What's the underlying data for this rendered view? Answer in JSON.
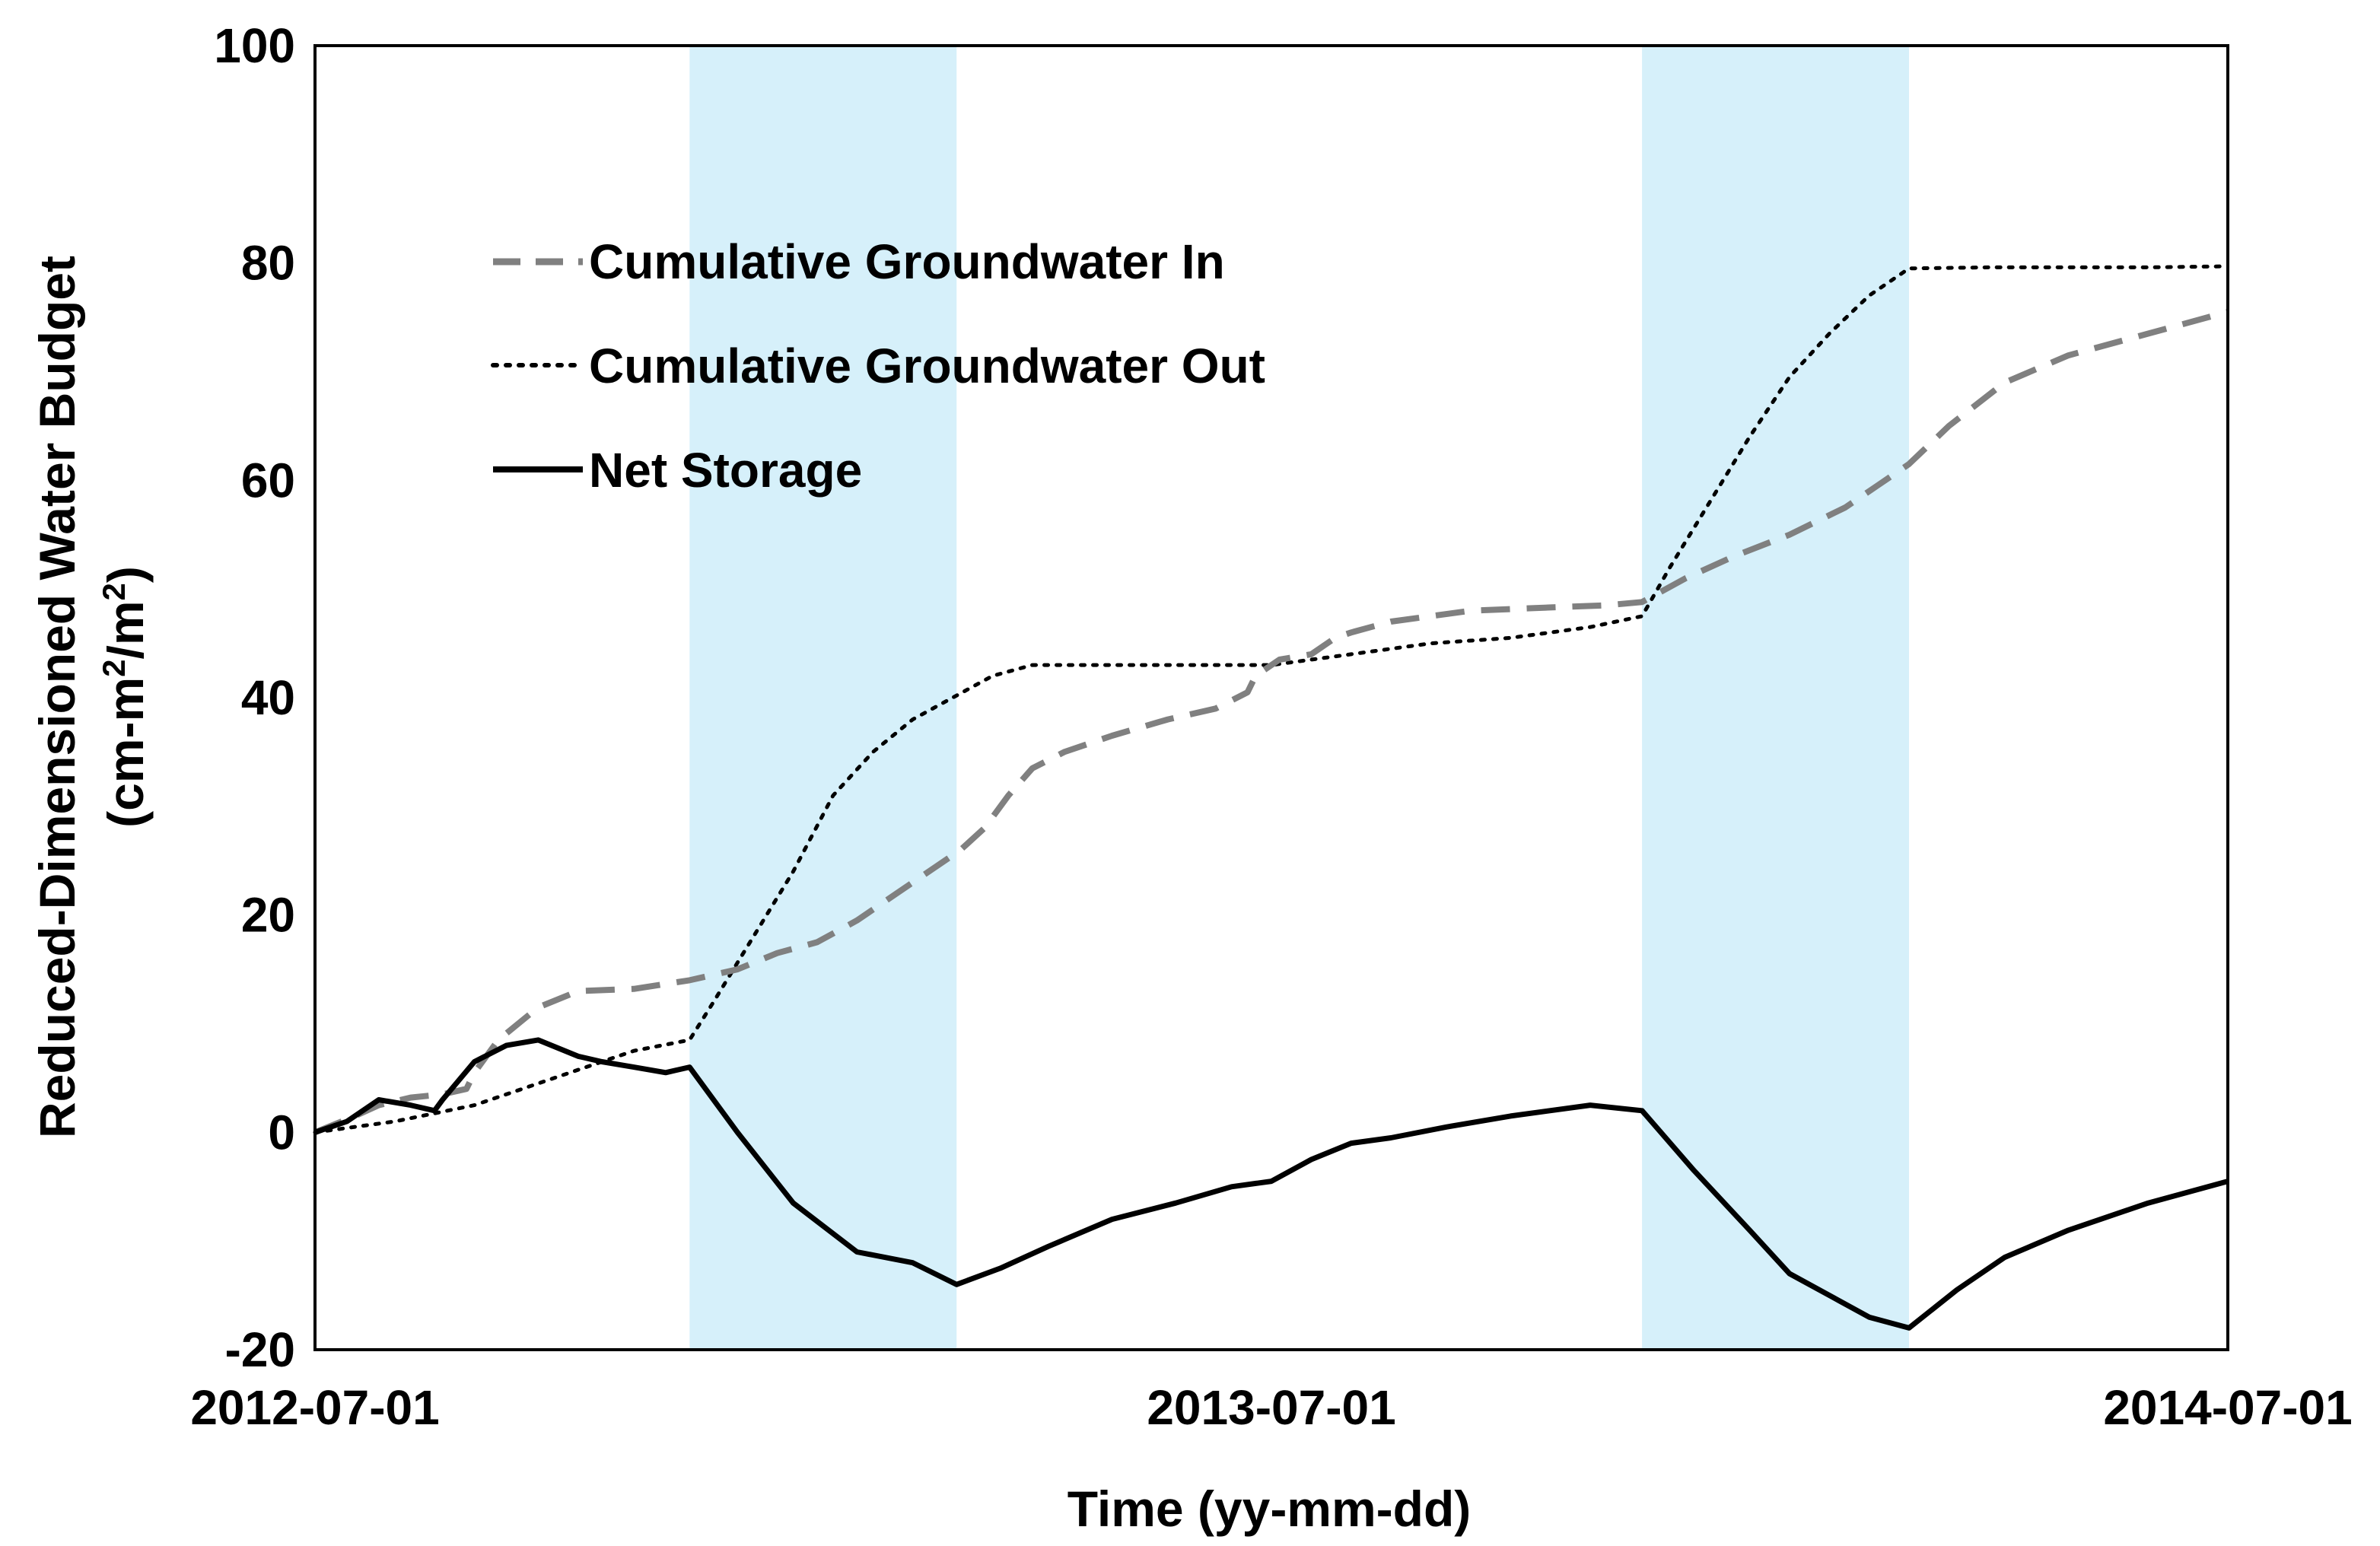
{
  "chart_data": {
    "type": "line",
    "title": "",
    "xlabel": "Time (yy-mm-dd)",
    "ylabel_line1": "Reduced-Dimensioned Water Budget",
    "ylabel_line2": "(cm-m",
    "ylabel_sup1": "2",
    "ylabel_mid": "/m",
    "ylabel_sup2": "2",
    "ylabel_end": ")",
    "x_unit": "months since 2012-07-01",
    "xlim": [
      0,
      24
    ],
    "ylim": [
      -20,
      100
    ],
    "y_ticks": [
      -20,
      0,
      20,
      40,
      60,
      80,
      100
    ],
    "y_tick_labels": [
      "-20",
      "0",
      "20",
      "40",
      "60",
      "80",
      "100"
    ],
    "x_ticks": [
      0,
      12,
      24
    ],
    "x_tick_labels": [
      "2012-07-01",
      "2013-07-01",
      "2014-07-01"
    ],
    "shaded_periods": [
      [
        4.7,
        8.05
      ],
      [
        16.65,
        20.0
      ]
    ],
    "shade_color": "#d6f0fa",
    "grid": false,
    "legend_position": "upper-left",
    "series": [
      {
        "name": "Cumulative Groundwater In",
        "style": "dashed",
        "color": "#808080",
        "x": [
          0,
          0.5,
          0.8,
          1.2,
          1.6,
          1.9,
          2.0,
          2.3,
          2.8,
          3.3,
          4.0,
          4.7,
          5.3,
          5.8,
          6.3,
          6.8,
          7.3,
          7.8,
          8.1,
          8.4,
          8.7,
          9.0,
          9.4,
          10.0,
          10.7,
          11.3,
          11.7,
          11.8,
          12.1,
          12.5,
          12.8,
          13.0,
          13.5,
          14.5,
          15.5,
          16.2,
          16.65,
          17.2,
          17.8,
          18.5,
          19.2,
          19.6,
          20.0,
          20.5,
          21.2,
          22.0,
          23.0,
          24.0
        ],
        "values": [
          0,
          1.5,
          2.5,
          3.2,
          3.5,
          4.0,
          5.5,
          8.5,
          11.5,
          13.0,
          13.2,
          14.0,
          15.0,
          16.5,
          17.5,
          19.5,
          22.0,
          24.5,
          26.0,
          28.0,
          31.0,
          33.5,
          35.0,
          36.5,
          38.0,
          39.0,
          40.5,
          42.0,
          43.5,
          44.0,
          45.5,
          46.0,
          47.0,
          48.0,
          48.3,
          48.5,
          48.8,
          51.0,
          53.0,
          55.0,
          57.5,
          59.5,
          61.5,
          65.0,
          69.0,
          71.5,
          73.5,
          75.5
        ]
      },
      {
        "name": "Cumulative Groundwater Out",
        "style": "dotted",
        "color": "#000000",
        "x": [
          0,
          1.0,
          2.0,
          3.0,
          4.0,
          4.7,
          5.0,
          5.5,
          6.0,
          6.5,
          7.0,
          7.5,
          8.0,
          8.5,
          9.0,
          10.0,
          11.0,
          12.0,
          13.0,
          14.0,
          15.0,
          16.0,
          16.65,
          17.0,
          17.5,
          18.0,
          18.5,
          19.0,
          19.5,
          20.0,
          21.0,
          22.0,
          23.0,
          24.0
        ],
        "values": [
          0,
          1.0,
          2.5,
          5.0,
          7.5,
          8.5,
          12.0,
          18.0,
          24.0,
          31.0,
          35.0,
          38.0,
          40.0,
          42.0,
          43.0,
          43.0,
          43.0,
          43.0,
          44.0,
          45.0,
          45.5,
          46.5,
          47.5,
          52.0,
          58.0,
          64.0,
          69.5,
          73.5,
          77.0,
          79.5,
          79.6,
          79.6,
          79.6,
          79.7
        ]
      },
      {
        "name": "Net Storage",
        "style": "solid",
        "color": "#000000",
        "x": [
          0,
          0.4,
          0.8,
          1.2,
          1.5,
          1.6,
          2.0,
          2.4,
          2.8,
          3.3,
          3.6,
          4.0,
          4.4,
          4.7,
          5.3,
          6.0,
          6.8,
          7.5,
          8.05,
          8.6,
          9.2,
          10.0,
          10.8,
          11.5,
          12.0,
          12.5,
          13.0,
          13.5,
          14.2,
          15.0,
          16.0,
          16.65,
          17.3,
          18.0,
          18.5,
          19.0,
          19.5,
          20.0,
          20.6,
          21.2,
          22.0,
          23.0,
          24.0
        ],
        "values": [
          0,
          1.0,
          3.0,
          2.5,
          2.0,
          3.0,
          6.5,
          8.0,
          8.5,
          7.0,
          6.5,
          6.0,
          5.5,
          6.0,
          0.0,
          -6.5,
          -11.0,
          -12.0,
          -14.0,
          -12.5,
          -10.5,
          -8.0,
          -6.5,
          -5.0,
          -4.5,
          -2.5,
          -1.0,
          -0.5,
          0.5,
          1.5,
          2.5,
          2.0,
          -3.5,
          -9.0,
          -13.0,
          -15.0,
          -17.0,
          -18.0,
          -14.5,
          -11.5,
          -9.0,
          -6.5,
          -4.5
        ]
      }
    ]
  }
}
